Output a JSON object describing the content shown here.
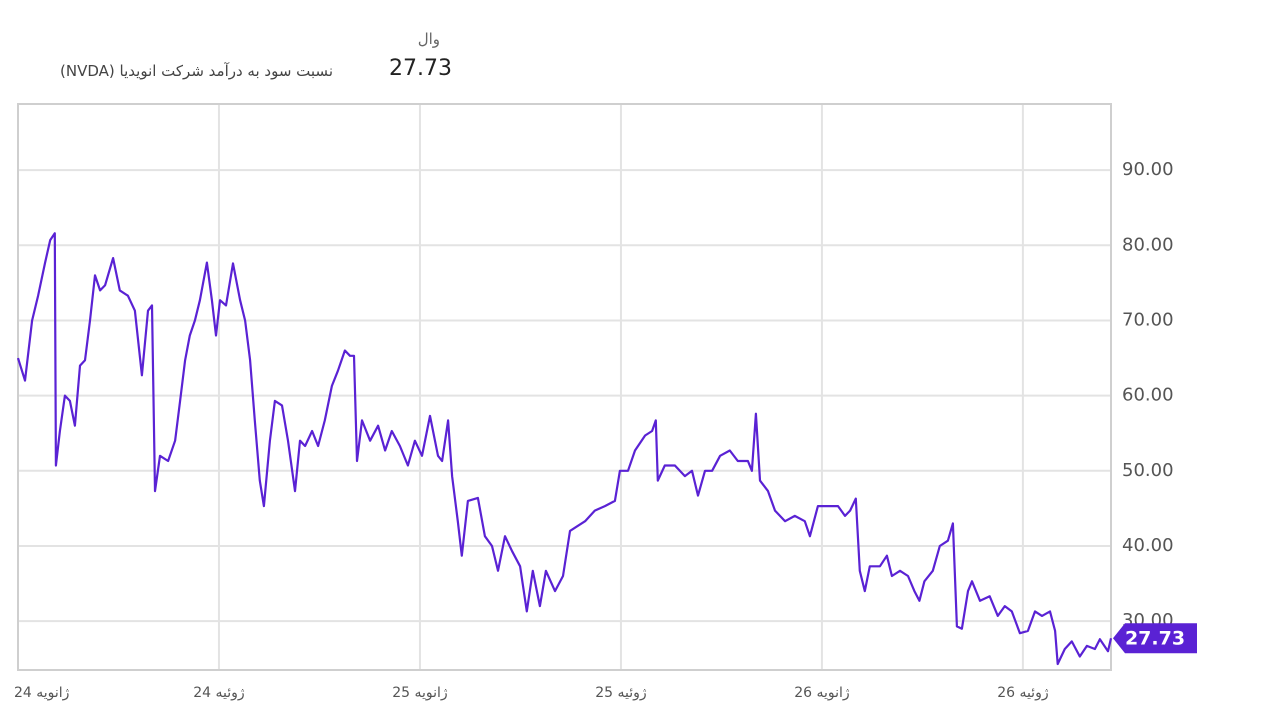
{
  "chart_data": {
    "type": "line",
    "title": "نسبت سود به درآمد شرکت انویدیا (NVDA)",
    "unit_label": "وال",
    "current_value": 27.73,
    "color": "#5a22d4",
    "grid": true,
    "x": [
      0,
      0.21,
      0.42,
      0.6,
      0.81,
      0.96,
      1.1,
      1.13,
      1.25,
      1.4,
      1.55,
      1.7,
      1.85,
      2.0,
      2.15,
      2.3,
      2.45,
      2.6,
      2.84,
      3.04,
      3.28,
      3.49,
      3.7,
      3.88,
      4.0,
      4.09,
      4.24,
      4.48,
      4.69,
      4.84,
      4.99,
      5.13,
      5.28,
      5.43,
      5.64,
      5.79,
      5.91,
      6.03,
      6.21,
      6.42,
      6.63,
      6.78,
      6.93,
      7.07,
      7.22,
      7.34,
      7.52,
      7.67,
      7.88,
      8.06,
      8.27,
      8.42,
      8.57,
      8.78,
      8.96,
      9.16,
      9.37,
      9.55,
      9.76,
      9.91,
      10.03,
      10.12,
      10.27,
      10.51,
      10.75,
      10.96,
      11.16,
      11.4,
      11.64,
      11.85,
      12.06,
      12.3,
      12.54,
      12.66,
      12.84,
      12.96,
      13.13,
      13.25,
      13.43,
      13.73,
      13.94,
      14.15,
      14.33,
      14.54,
      14.75,
      14.99,
      15.19,
      15.37,
      15.58,
      15.76,
      16.03,
      16.27,
      16.48,
      16.72,
      16.93,
      17.22,
      17.52,
      17.82,
      17.97,
      18.21,
      18.42,
      18.72,
      18.93,
      19.04,
      19.1,
      19.31,
      19.61,
      19.91,
      20.12,
      20.3,
      20.51,
      20.72,
      20.96,
      21.25,
      21.49,
      21.79,
      21.91,
      22.03,
      22.15,
      22.39,
      22.6,
      22.9,
      23.19,
      23.49,
      23.64,
      23.88,
      24.18,
      24.48,
      24.69,
      24.84,
      25.01,
      25.13,
      25.28,
      25.43,
      25.73,
      25.94,
      26.09,
      26.33,
      26.57,
      26.76,
      26.91,
      27.06,
      27.31,
      27.52,
      27.76,
      27.91,
      28.03,
      28.18,
      28.36,
      28.48,
      28.72,
      29.01,
      29.25,
      29.46,
      29.67,
      29.91,
      30.15,
      30.36,
      30.57,
      30.81,
      30.96,
      31.04,
      31.25,
      31.46,
      31.7,
      31.91,
      32.15,
      32.3,
      32.54,
      32.63
    ],
    "values": [
      65,
      62,
      70,
      73.3,
      77.7,
      80.7,
      81.6,
      50.7,
      55.3,
      60,
      59.3,
      56,
      64,
      64.7,
      70,
      76,
      74,
      74.7,
      78.3,
      74,
      73.3,
      71.3,
      62.7,
      71.3,
      72,
      47.3,
      52,
      51.3,
      54,
      59.3,
      64.7,
      68,
      70,
      72.7,
      77.7,
      72.7,
      68,
      72.7,
      72,
      77.6,
      72.7,
      70,
      64.7,
      56.7,
      48.7,
      45.3,
      54,
      59.3,
      58.7,
      54,
      47.3,
      54,
      53.3,
      55.3,
      53.3,
      56.7,
      61.3,
      63.3,
      66,
      65.3,
      65.3,
      51.3,
      56.7,
      54,
      56,
      52.7,
      55.3,
      53.3,
      50.7,
      54,
      52,
      57.3,
      52,
      51.3,
      56.7,
      49.3,
      43.3,
      38.7,
      46,
      46.4,
      41.3,
      40,
      36.7,
      41.3,
      39.3,
      37.3,
      31.3,
      36.7,
      32,
      36.7,
      34,
      36,
      42,
      42.7,
      43.3,
      44.7,
      45.3,
      46,
      50,
      50,
      52.7,
      54.7,
      55.3,
      56.7,
      48.7,
      50.7,
      50.7,
      49.3,
      50,
      46.7,
      50,
      50,
      52,
      52.7,
      51.3,
      51.3,
      50,
      57.6,
      48.7,
      47.3,
      44.7,
      43.3,
      44,
      43.3,
      41.3,
      45.3,
      45.3,
      45.3,
      44,
      44.7,
      46.3,
      36.7,
      34,
      37.3,
      37.3,
      38.7,
      36,
      36.7,
      36,
      34,
      32.7,
      35.3,
      36.7,
      40,
      40.7,
      43,
      29.3,
      29,
      34,
      35.3,
      32.7,
      33.3,
      30.7,
      32,
      31.3,
      28.4,
      28.7,
      31.3,
      30.7,
      31.3,
      28.7,
      24.3,
      26.3,
      27.3,
      25.3,
      26.7,
      26.3,
      27.6,
      26,
      27.73
    ],
    "xlim": [
      0,
      32.63
    ],
    "xticks": [
      {
        "value": 0,
        "label": "24 ژانویه"
      },
      {
        "value": 6,
        "label": "24 ژوئیه"
      },
      {
        "value": 12,
        "label": "25 ژانویه"
      },
      {
        "value": 18,
        "label": "25 ژوئیه"
      },
      {
        "value": 24,
        "label": "26 ژانویه"
      },
      {
        "value": 30,
        "label": "26 ژوئیه"
      }
    ],
    "ylim": [
      23.5,
      98.8
    ],
    "yticks": [
      {
        "value": 30,
        "label": "30.00"
      },
      {
        "value": 40,
        "label": "40.00"
      },
      {
        "value": 50,
        "label": "50.00"
      },
      {
        "value": 60,
        "label": "60.00"
      },
      {
        "value": 70,
        "label": "70.00"
      },
      {
        "value": 80,
        "label": "80.00"
      },
      {
        "value": 90,
        "label": "90.00"
      }
    ]
  }
}
